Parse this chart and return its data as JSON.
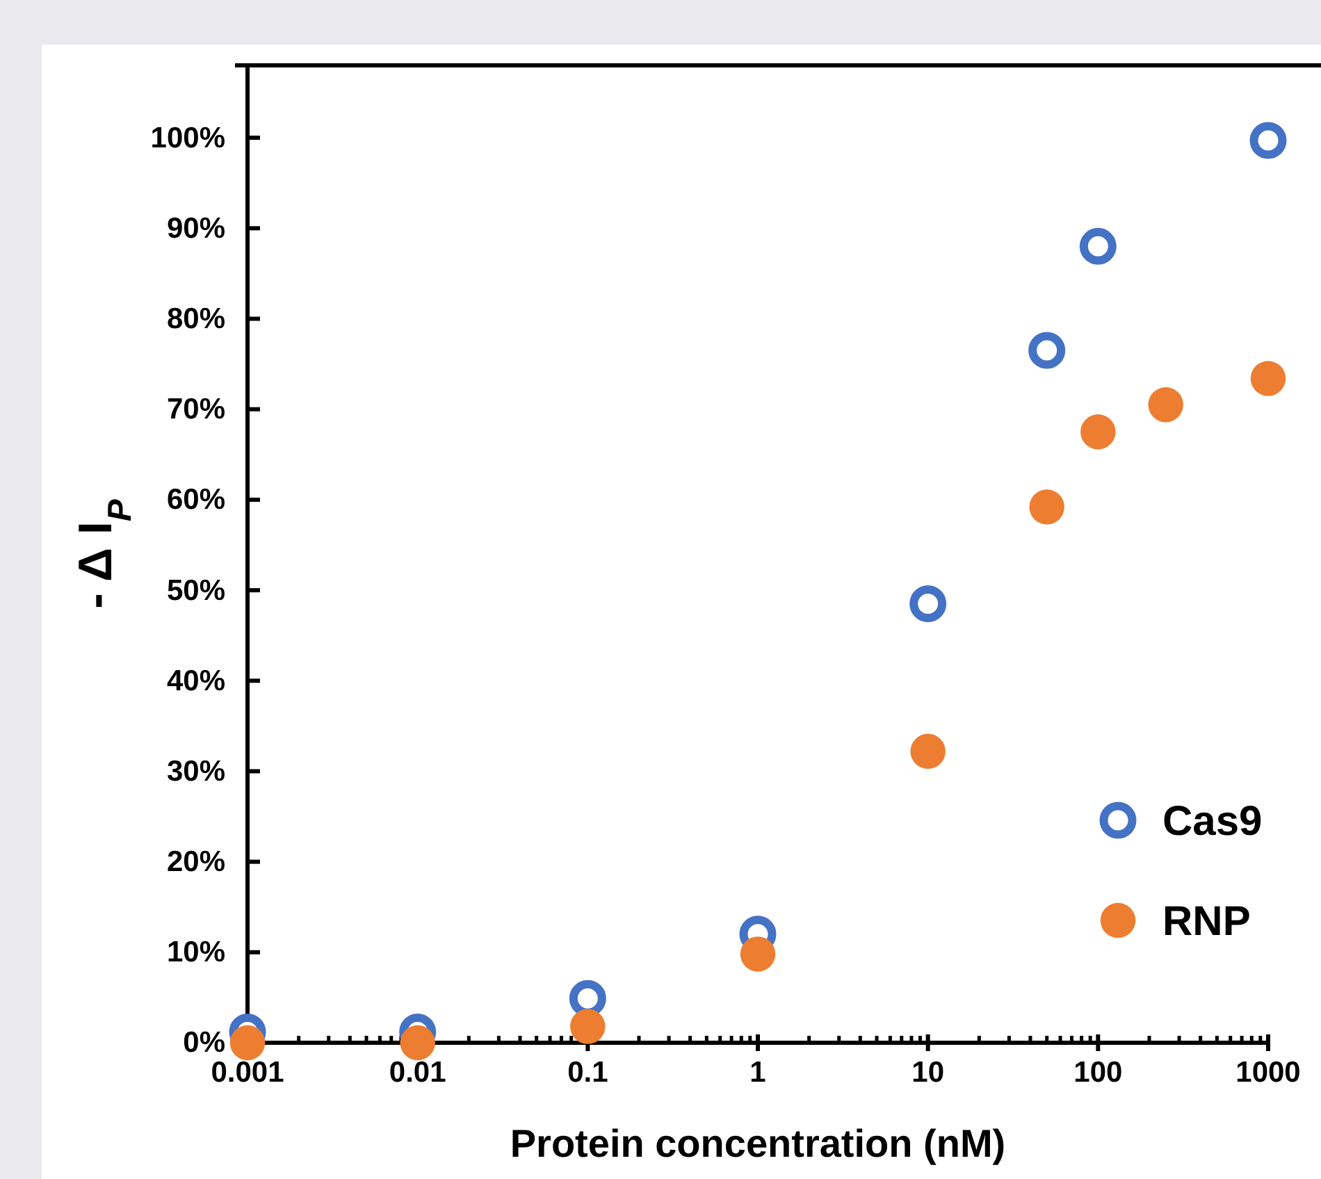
{
  "chart_data": {
    "type": "scatter",
    "xlabel": "Protein concentration (nM)",
    "ylabel": "- Δ I$_{P}$",
    "log": "x",
    "xlim": [
      0.001,
      1000
    ],
    "xticks": [
      0.001,
      {
        "value": 0.002,
        "label": null
      },
      {
        "value": 0.003,
        "label": null
      },
      {
        "value": 0.004,
        "label": null
      },
      {
        "value": 0.005,
        "label": null
      },
      {
        "value": 0.006,
        "label": null
      },
      {
        "value": 0.007,
        "label": null
      },
      {
        "value": 0.008,
        "label": null
      },
      {
        "value": 0.009,
        "label": null
      },
      0.01,
      {
        "value": 0.02,
        "label": null
      },
      {
        "value": 0.03,
        "label": null
      },
      {
        "value": 0.04,
        "label": null
      },
      {
        "value": 0.05,
        "label": null
      },
      {
        "value": 0.06,
        "label": null
      },
      {
        "value": 0.07,
        "label": null
      },
      {
        "value": 0.08,
        "label": null
      },
      {
        "value": 0.09,
        "label": null
      },
      0.1,
      {
        "value": 0.2,
        "label": null
      },
      {
        "value": 0.3,
        "label": null
      },
      {
        "value": 0.4,
        "label": null
      },
      {
        "value": 0.5,
        "label": null
      },
      {
        "value": 0.6,
        "label": null
      },
      {
        "value": 0.7,
        "label": null
      },
      {
        "value": 0.8,
        "label": null
      },
      {
        "value": 0.9,
        "label": null
      },
      1,
      {
        "value": 2,
        "label": null
      },
      {
        "value": 3,
        "label": null
      },
      {
        "value": 4,
        "label": null
      },
      {
        "value": 5,
        "label": null
      },
      {
        "value": 6,
        "label": null
      },
      {
        "value": 7,
        "label": null
      },
      {
        "value": 8,
        "label": null
      },
      {
        "value": 9,
        "label": null
      },
      10,
      {
        "value": 20,
        "label": null
      },
      {
        "value": 30,
        "label": null
      },
      {
        "value": 40,
        "label": null
      },
      {
        "value": 50,
        "label": null
      },
      {
        "value": 60,
        "label": null
      },
      {
        "value": 70,
        "label": null
      },
      {
        "value": 80,
        "label": null
      },
      {
        "value": 90,
        "label": null
      },
      100,
      {
        "value": 200,
        "label": null
      },
      {
        "value": 300,
        "label": null
      },
      {
        "value": 400,
        "label": null
      },
      {
        "value": 500,
        "label": null
      },
      {
        "value": 600,
        "label": null
      },
      {
        "value": 700,
        "label": null
      },
      {
        "value": 800,
        "label": null
      },
      {
        "value": 900,
        "label": null
      },
      1000
    ],
    "ylim": [
      0,
      108
    ],
    "yticks": [
      {
        "value": 0,
        "label": "0%"
      },
      {
        "value": 10,
        "label": "10%"
      },
      {
        "value": 20,
        "label": "20%"
      },
      {
        "value": 30,
        "label": "30%"
      },
      {
        "value": 40,
        "label": "40%"
      },
      {
        "value": 50,
        "label": "50%"
      },
      {
        "value": 60,
        "label": "60%"
      },
      {
        "value": 70,
        "label": "70%"
      },
      {
        "value": 80,
        "label": "80%"
      },
      {
        "value": 90,
        "label": "90%"
      },
      {
        "value": 100,
        "label": "100%"
      }
    ],
    "grid": false,
    "legend": "bottom right",
    "series": [
      {
        "name": "Cas9",
        "color": "#4472c4",
        "marker": "circle",
        "x": [
          0.001,
          0.01,
          0.1,
          1,
          10,
          50,
          100,
          1000
        ],
        "values": [
          1.2,
          1.2,
          4.9,
          12,
          48.5,
          76.5,
          88,
          99.7
        ]
      },
      {
        "name": "RNP",
        "color": "#ed7d31",
        "marker": "circle",
        "x": [
          0.001,
          0.01,
          0.1,
          1,
          10,
          50,
          100,
          250,
          1000
        ],
        "values": [
          0,
          0,
          1.8,
          9.8,
          32.2,
          59.2,
          67.5,
          70.5,
          73.4
        ]
      }
    ]
  }
}
